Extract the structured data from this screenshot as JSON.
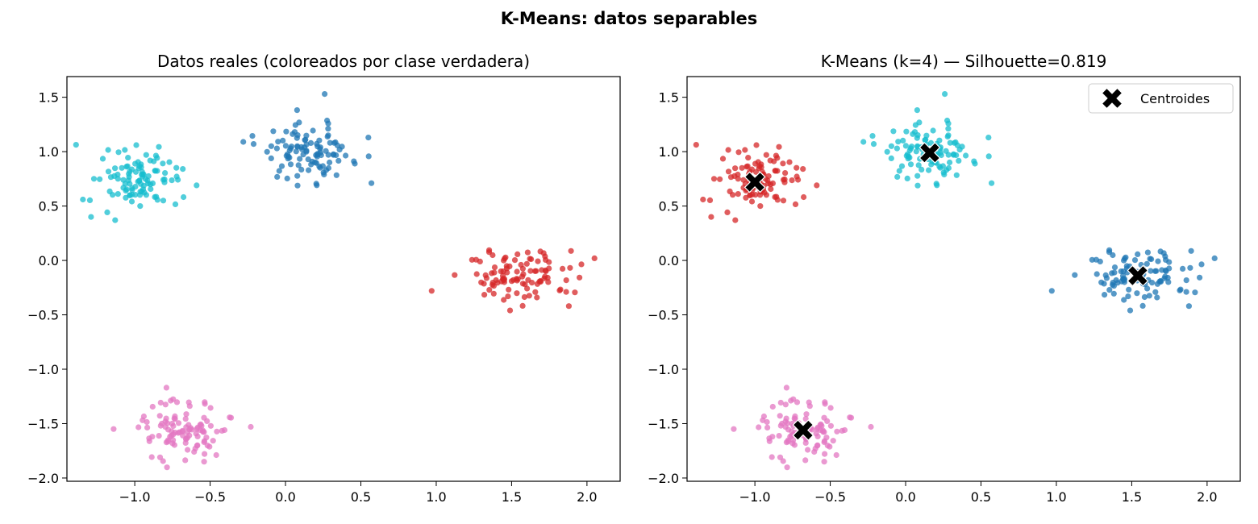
{
  "figure": {
    "suptitle": "K-Means: datos separables"
  },
  "colors": {
    "blue": "#1f77b4",
    "cyan": "#17becf",
    "red": "#d62728",
    "pink": "#e377c2",
    "centroid": "#000000"
  },
  "chart_data": [
    {
      "type": "scatter",
      "title": "Datos reales (coloreados por clase verdadera)",
      "xlabel": "",
      "ylabel": "",
      "xlim": [
        -1.45,
        2.22
      ],
      "ylim": [
        -2.03,
        1.69
      ],
      "xticks": [
        -1.0,
        -0.5,
        0.0,
        0.5,
        1.0,
        1.5,
        2.0
      ],
      "yticks": [
        -2.0,
        -1.5,
        -1.0,
        -0.5,
        0.0,
        0.5,
        1.0,
        1.5
      ],
      "xtick_labels": [
        "−1.0",
        "−0.5",
        "0.0",
        "0.5",
        "1.0",
        "1.5",
        "2.0"
      ],
      "ytick_labels": [
        "−2.0",
        "−1.5",
        "−1.0",
        "−0.5",
        "0.0",
        "0.5",
        "1.0",
        "1.5"
      ],
      "grid": false,
      "series": [
        {
          "color": "blue",
          "center": [
            0.16,
            0.99
          ],
          "spread": [
            0.15,
            0.13
          ],
          "n": 100,
          "points": [
            [
              0.26,
              1.53
            ],
            [
              -0.28,
              1.09
            ],
            [
              0.57,
              0.71
            ],
            [
              0.55,
              1.13
            ]
          ]
        },
        {
          "color": "cyan",
          "center": [
            -1.0,
            0.72
          ],
          "spread": [
            0.14,
            0.13
          ],
          "n": 100,
          "points": [
            [
              -1.29,
              0.4
            ],
            [
              -0.59,
              0.69
            ],
            [
              -1.13,
              0.37
            ],
            [
              -0.99,
              1.06
            ]
          ]
        },
        {
          "color": "red",
          "center": [
            1.54,
            -0.14
          ],
          "spread": [
            0.17,
            0.12
          ],
          "n": 100,
          "points": [
            [
              0.97,
              -0.28
            ],
            [
              2.05,
              0.02
            ],
            [
              1.49,
              -0.46
            ],
            [
              1.88,
              -0.42
            ]
          ]
        },
        {
          "color": "pink",
          "center": [
            -0.68,
            -1.56
          ],
          "spread": [
            0.15,
            0.13
          ],
          "n": 100,
          "points": [
            [
              -1.14,
              -1.55
            ],
            [
              -0.23,
              -1.53
            ],
            [
              -0.79,
              -1.17
            ],
            [
              -0.54,
              -1.85
            ]
          ]
        }
      ]
    },
    {
      "type": "scatter",
      "title": "K-Means (k=4) — Silhouette=0.819",
      "xlabel": "",
      "ylabel": "",
      "xlim": [
        -1.45,
        2.22
      ],
      "ylim": [
        -2.03,
        1.69
      ],
      "xticks": [
        -1.0,
        -0.5,
        0.0,
        0.5,
        1.0,
        1.5,
        2.0
      ],
      "yticks": [
        -2.0,
        -1.5,
        -1.0,
        -0.5,
        0.0,
        0.5,
        1.0,
        1.5
      ],
      "xtick_labels": [
        "−1.0",
        "−0.5",
        "0.0",
        "0.5",
        "1.0",
        "1.5",
        "2.0"
      ],
      "ytick_labels": [
        "−2.0",
        "−1.5",
        "−1.0",
        "−0.5",
        "0.0",
        "0.5",
        "1.0",
        "1.5"
      ],
      "grid": false,
      "series": [
        {
          "color": "cyan",
          "center": [
            0.16,
            0.99
          ],
          "spread": [
            0.15,
            0.13
          ],
          "n": 100,
          "points": [
            [
              0.26,
              1.53
            ],
            [
              -0.28,
              1.09
            ],
            [
              0.57,
              0.71
            ],
            [
              0.55,
              1.13
            ]
          ]
        },
        {
          "color": "red",
          "center": [
            -1.0,
            0.72
          ],
          "spread": [
            0.14,
            0.13
          ],
          "n": 100,
          "points": [
            [
              -1.29,
              0.4
            ],
            [
              -0.59,
              0.69
            ],
            [
              -1.13,
              0.37
            ],
            [
              -0.99,
              1.06
            ]
          ]
        },
        {
          "color": "blue",
          "center": [
            1.54,
            -0.14
          ],
          "spread": [
            0.17,
            0.12
          ],
          "n": 100,
          "points": [
            [
              0.97,
              -0.28
            ],
            [
              2.05,
              0.02
            ],
            [
              1.49,
              -0.46
            ],
            [
              1.88,
              -0.42
            ]
          ]
        },
        {
          "color": "pink",
          "center": [
            -0.68,
            -1.56
          ],
          "spread": [
            0.15,
            0.13
          ],
          "n": 100,
          "points": [
            [
              -1.14,
              -1.55
            ],
            [
              -0.23,
              -1.53
            ],
            [
              -0.79,
              -1.17
            ],
            [
              -0.54,
              -1.85
            ]
          ]
        }
      ],
      "centroids": {
        "name": "Centroides",
        "marker": "X",
        "color": "centroid",
        "points": [
          [
            -1.0,
            0.72
          ],
          [
            0.16,
            0.99
          ],
          [
            1.54,
            -0.14
          ],
          [
            -0.68,
            -1.56
          ]
        ]
      },
      "legend": {
        "placement": "top-right",
        "entries": [
          "Centroides"
        ]
      }
    }
  ]
}
